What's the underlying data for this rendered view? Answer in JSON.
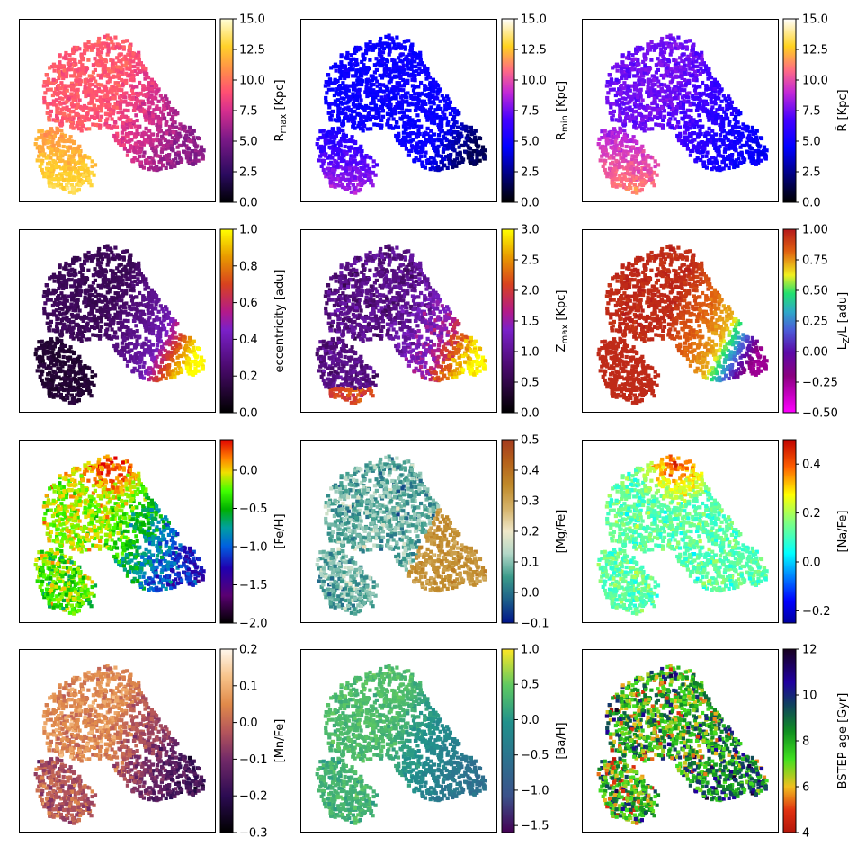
{
  "chart_data": [
    {
      "type": "scatter",
      "colorbar_label": "R_max [Kpc]",
      "label_main": "R",
      "label_sub": "max",
      "label_unit": " [Kpc]",
      "colormap": "spring_magma",
      "clim": [
        0,
        15
      ],
      "ticks": [
        "0.0",
        "2.5",
        "5.0",
        "7.5",
        "10.0",
        "12.5",
        "15.0"
      ],
      "tick_values": [
        0,
        2.5,
        5,
        7.5,
        10,
        12.5,
        15
      ],
      "field": "rmax"
    },
    {
      "type": "scatter",
      "colorbar_label": "R_min [Kpc]",
      "label_main": "R",
      "label_sub": "min",
      "label_unit": " [Kpc]",
      "colormap": "gnuplot2",
      "clim": [
        0,
        15
      ],
      "ticks": [
        "0.0",
        "2.5",
        "5.0",
        "7.5",
        "10.0",
        "12.5",
        "15.0"
      ],
      "tick_values": [
        0,
        2.5,
        5,
        7.5,
        10,
        12.5,
        15
      ],
      "field": "rmin"
    },
    {
      "type": "scatter",
      "colorbar_label": "R̄ [Kpc]",
      "label_main": "R̄",
      "label_sub": "",
      "label_unit": " [Kpc]",
      "colormap": "gnuplot2",
      "clim": [
        0,
        15
      ],
      "ticks": [
        "0.0",
        "2.5",
        "5.0",
        "7.5",
        "10.0",
        "12.5",
        "15.0"
      ],
      "tick_values": [
        0,
        2.5,
        5,
        7.5,
        10,
        12.5,
        15
      ],
      "field": "rmean"
    },
    {
      "type": "scatter",
      "colorbar_label": "eccentricity [adu]",
      "label_main": "eccentricity [adu]",
      "label_sub": "",
      "label_unit": "",
      "colormap": "gnuplot",
      "clim": [
        0,
        1
      ],
      "ticks": [
        "0.0",
        "0.2",
        "0.4",
        "0.6",
        "0.8",
        "1.0"
      ],
      "tick_values": [
        0,
        0.2,
        0.4,
        0.6,
        0.8,
        1
      ],
      "field": "ecc"
    },
    {
      "type": "scatter",
      "colorbar_label": "Z_max [Kpc]",
      "label_main": "Z",
      "label_sub": "max",
      "label_unit": " [Kpc]",
      "colormap": "gnuplot",
      "clim": [
        0,
        3
      ],
      "ticks": [
        "0.0",
        "0.5",
        "1.0",
        "1.5",
        "2.0",
        "2.5",
        "3.0"
      ],
      "tick_values": [
        0,
        0.5,
        1,
        1.5,
        2,
        2.5,
        3
      ],
      "field": "zmax"
    },
    {
      "type": "scatter",
      "colorbar_label": "L_Z/L [adu]",
      "label_main": "L",
      "label_sub": "Z",
      "label_unit": "/L [adu]",
      "colormap": "lz",
      "clim": [
        -0.5,
        1
      ],
      "ticks": [
        "−0.50",
        "−0.25",
        "0.00",
        "0.25",
        "0.50",
        "0.75",
        "1.00"
      ],
      "tick_values": [
        -0.5,
        -0.25,
        0,
        0.25,
        0.5,
        0.75,
        1
      ],
      "field": "lz"
    },
    {
      "type": "scatter",
      "colorbar_label": "[Fe/H]",
      "label_main": "[Fe/H]",
      "label_sub": "",
      "label_unit": "",
      "colormap": "nipy",
      "clim": [
        -2,
        0.4
      ],
      "ticks": [
        "−2.0",
        "−1.5",
        "−1.0",
        "−0.5",
        "0.0"
      ],
      "tick_values": [
        -2,
        -1.5,
        -1,
        -0.5,
        0
      ],
      "field": "feh"
    },
    {
      "type": "scatter",
      "colorbar_label": "[Mg/Fe]",
      "label_main": "[Mg/Fe]",
      "label_sub": "",
      "label_unit": "",
      "colormap": "mgfe",
      "clim": [
        -0.1,
        0.5
      ],
      "ticks": [
        "−0.1",
        "0.0",
        "0.1",
        "0.2",
        "0.3",
        "0.4",
        "0.5"
      ],
      "tick_values": [
        -0.1,
        0,
        0.1,
        0.2,
        0.3,
        0.4,
        0.5
      ],
      "field": "mgfe"
    },
    {
      "type": "scatter",
      "colorbar_label": "[Na/Fe]",
      "label_main": "[Na/Fe]",
      "label_sub": "",
      "label_unit": "",
      "colormap": "jet",
      "clim": [
        -0.25,
        0.5
      ],
      "ticks": [
        "−0.2",
        "0.0",
        "0.2",
        "0.4"
      ],
      "tick_values": [
        -0.2,
        0,
        0.2,
        0.4
      ],
      "field": "nafe"
    },
    {
      "type": "scatter",
      "colorbar_label": "[Mn/Fe]",
      "label_main": "[Mn/Fe]",
      "label_sub": "",
      "label_unit": "",
      "colormap": "puor",
      "clim": [
        -0.3,
        0.2
      ],
      "ticks": [
        "−0.3",
        "−0.2",
        "−0.1",
        "0.0",
        "0.1",
        "0.2"
      ],
      "tick_values": [
        -0.3,
        -0.2,
        -0.1,
        0,
        0.1,
        0.2
      ],
      "field": "mnfe"
    },
    {
      "type": "scatter",
      "colorbar_label": "[Ba/H]",
      "label_main": "[Ba/H]",
      "label_sub": "",
      "label_unit": "",
      "colormap": "viridis",
      "clim": [
        -1.6,
        1
      ],
      "ticks": [
        "−1.5",
        "−1.0",
        "−0.5",
        "0.0",
        "0.5",
        "1.0"
      ],
      "tick_values": [
        -1.5,
        -1,
        -0.5,
        0,
        0.5,
        1
      ],
      "field": "bah"
    },
    {
      "type": "scatter",
      "colorbar_label": "BSTEP age [Gyr]",
      "label_main": "BSTEP age [Gyr]",
      "label_sub": "",
      "label_unit": "",
      "colormap": "age",
      "clim": [
        4,
        12
      ],
      "ticks": [
        "4",
        "6",
        "8",
        "10",
        "12"
      ],
      "tick_values": [
        4,
        6,
        8,
        10,
        12
      ],
      "field": "age"
    }
  ]
}
